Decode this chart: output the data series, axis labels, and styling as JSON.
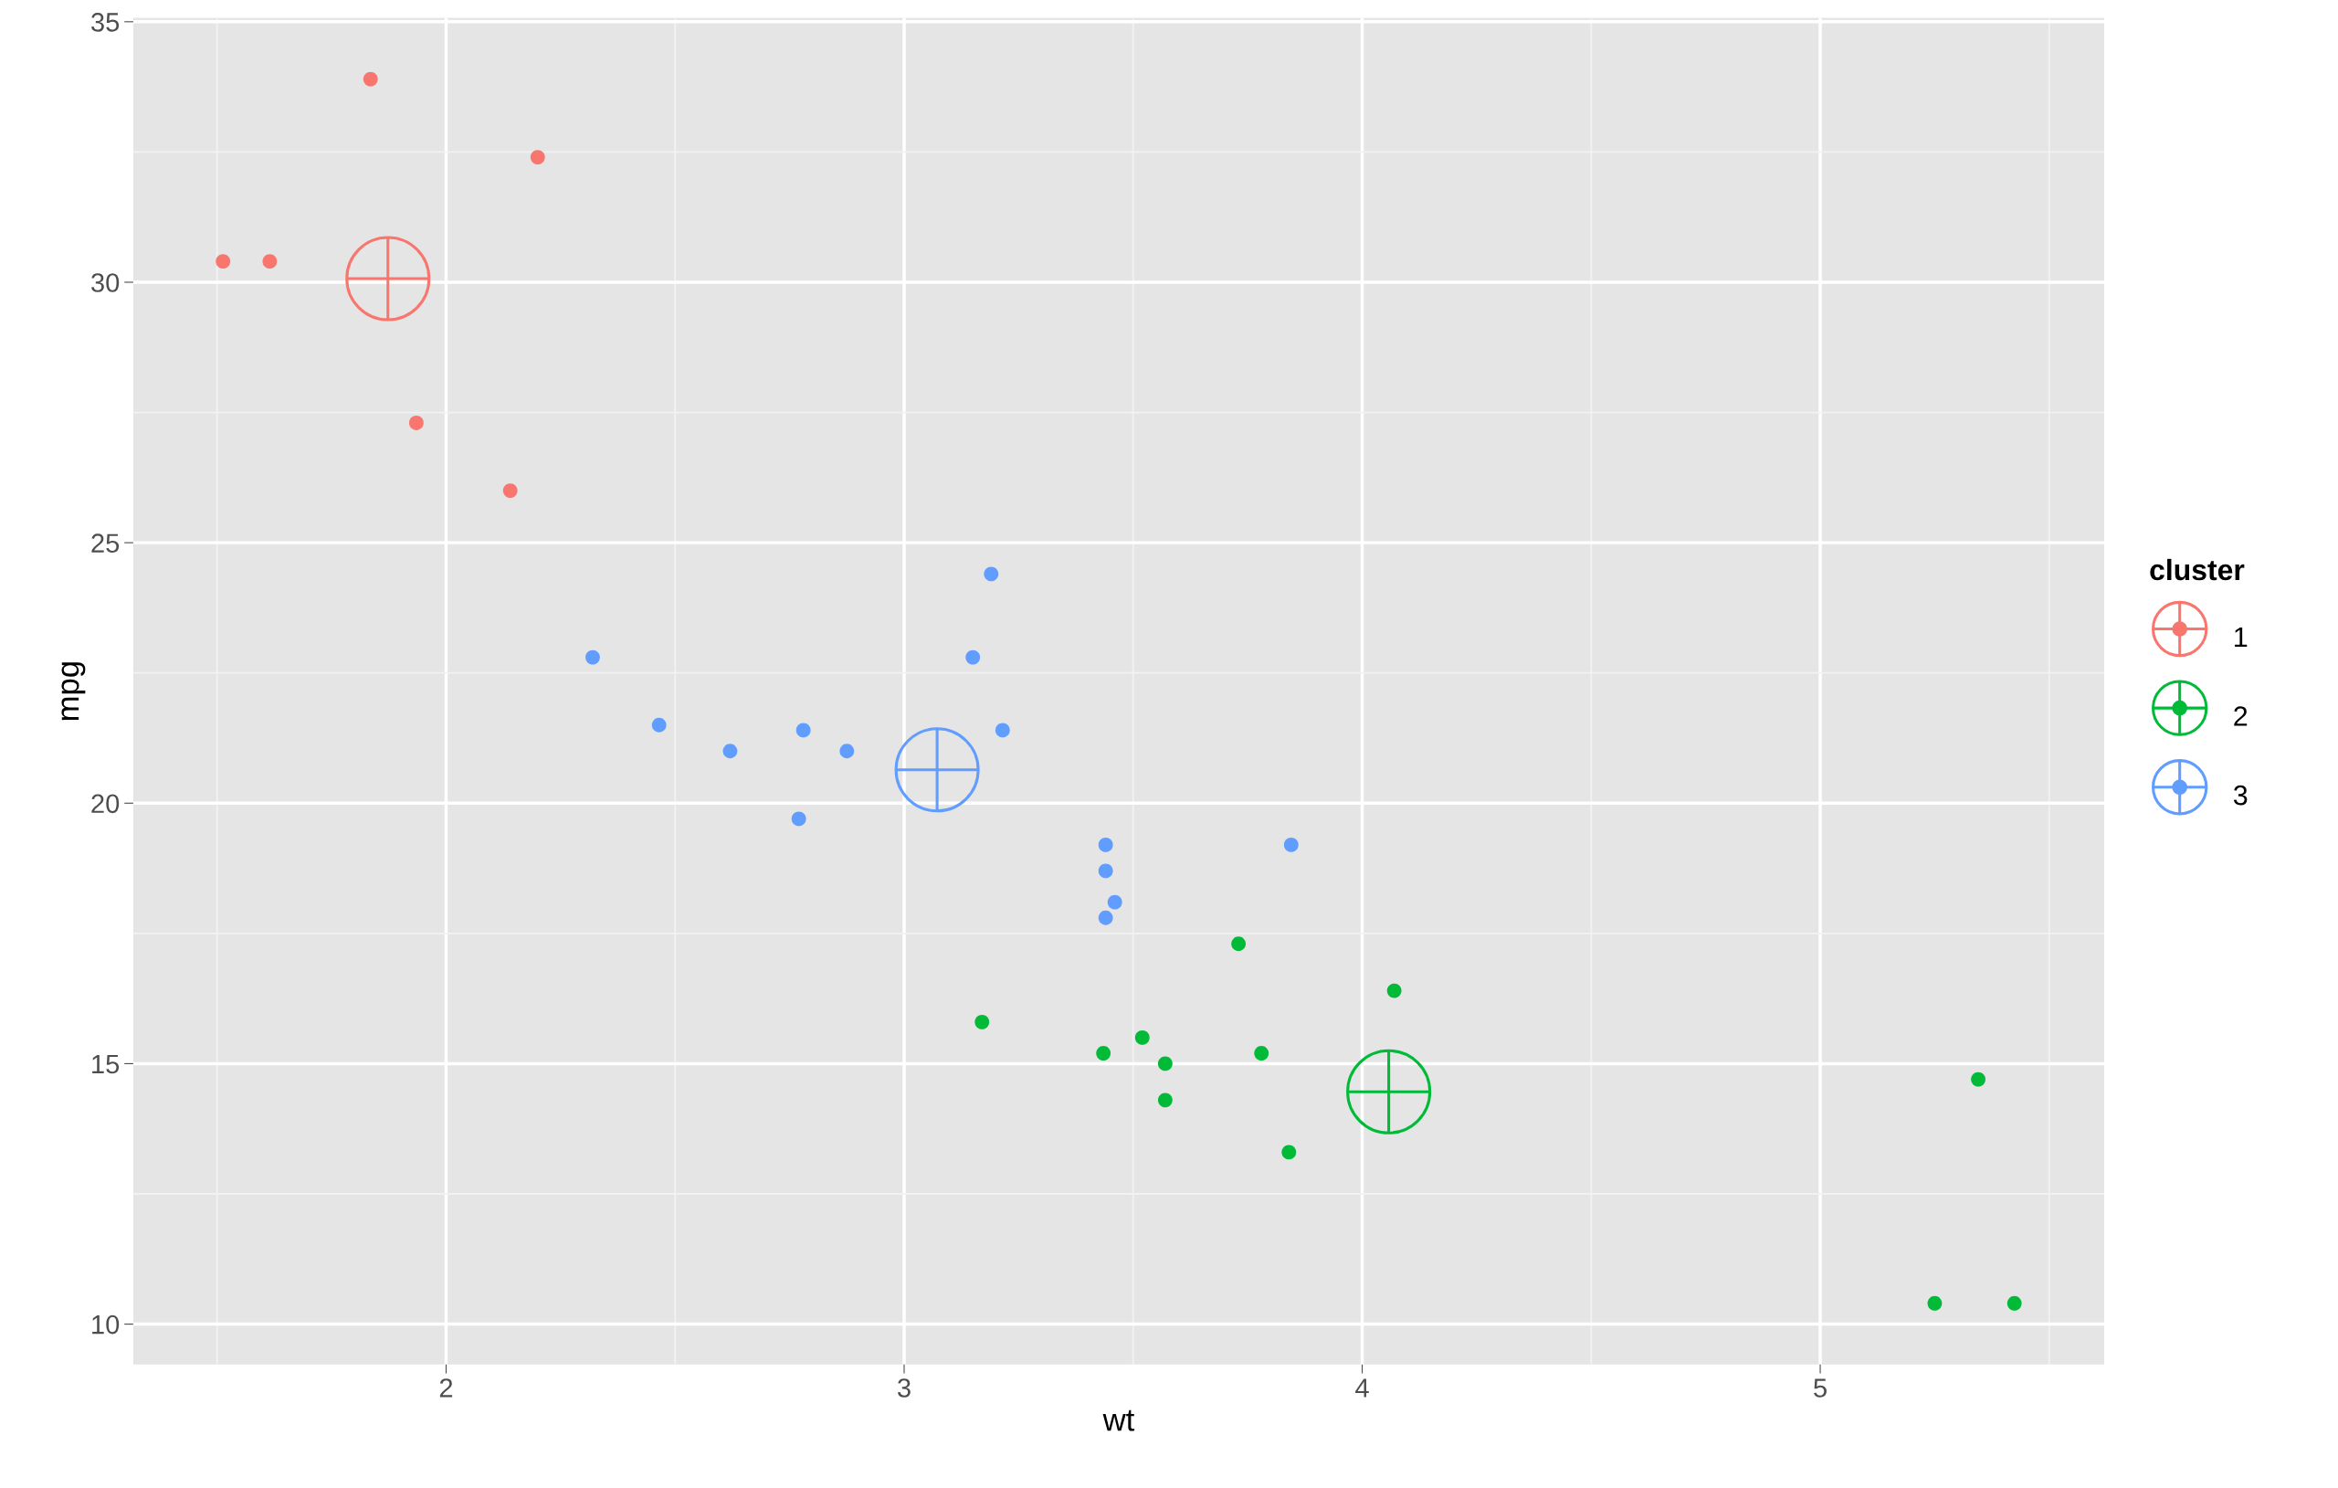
{
  "chart_data": {
    "type": "scatter",
    "xlabel": "wt",
    "ylabel": "mpg",
    "legend_title": "cluster",
    "legend": "right",
    "grid": true,
    "marker": "circle",
    "xlim": [
      1.317,
      5.62
    ],
    "ylim": [
      9.225,
      35.075
    ],
    "xticks": [
      2,
      3,
      4,
      5
    ],
    "yticks": [
      10,
      15,
      20,
      25,
      30,
      35
    ],
    "series": [
      {
        "name": "1",
        "color": "#f8766d",
        "x": [
          1.513,
          1.615,
          1.835,
          1.935,
          2.14,
          2.2
        ],
        "values": [
          30.4,
          30.4,
          33.9,
          27.3,
          26.0,
          32.4
        ]
      },
      {
        "name": "2",
        "color": "#00ba38",
        "x": [
          3.17,
          3.435,
          3.52,
          3.57,
          3.57,
          3.73,
          3.78,
          3.84,
          4.07,
          5.25,
          5.345,
          5.424
        ],
        "values": [
          15.8,
          15.2,
          15.5,
          15.0,
          14.3,
          17.3,
          15.2,
          13.3,
          16.4,
          10.4,
          14.7,
          10.4
        ]
      },
      {
        "name": "3",
        "color": "#619cff",
        "x": [
          2.32,
          2.465,
          2.62,
          2.78,
          2.77,
          2.875,
          3.15,
          3.19,
          3.215,
          3.44,
          3.44,
          3.46,
          3.44,
          3.845
        ],
        "values": [
          22.8,
          21.5,
          21.0,
          21.4,
          19.7,
          21.0,
          22.8,
          24.4,
          21.4,
          19.2,
          18.7,
          18.1,
          17.8,
          19.2
        ]
      },
      {
        "type": "bubble",
        "color": "#f8766d",
        "x": [
          1.873
        ],
        "values": [
          30.07
        ],
        "sizes": [
          1
        ]
      },
      {
        "type": "bubble",
        "color": "#00ba38",
        "x": [
          4.058
        ],
        "values": [
          14.46
        ],
        "sizes": [
          1
        ]
      },
      {
        "type": "bubble",
        "color": "#619cff",
        "x": [
          3.072
        ],
        "values": [
          20.64
        ],
        "sizes": [
          1
        ]
      }
    ]
  }
}
